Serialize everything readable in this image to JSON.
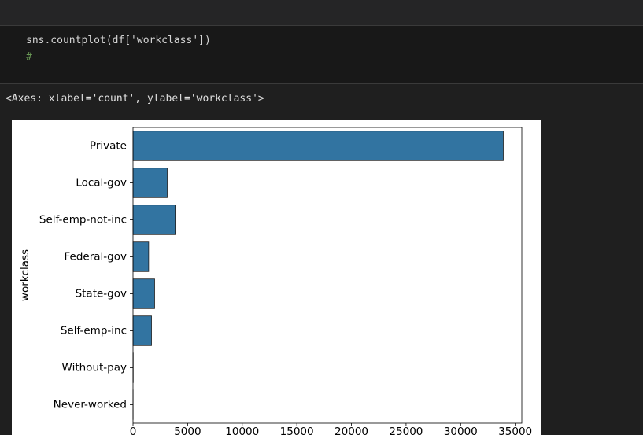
{
  "cell": {
    "code_lines": [
      "sns.countplot(df['workclass'])",
      "#"
    ],
    "output": "<Axes: xlabel='count', ylabel='workclass'>"
  },
  "chart_data": {
    "type": "barh",
    "ylabel": "workclass",
    "categories": [
      "Private",
      "Local-gov",
      "Self-emp-not-inc",
      "Federal-gov",
      "State-gov",
      "Self-emp-inc",
      "Without-pay",
      "Never-worked"
    ],
    "values": [
      33906,
      3136,
      3862,
      1432,
      1981,
      1695,
      21,
      10
    ],
    "color": "#3274a1",
    "xlim": [
      0,
      35600
    ],
    "xticks": [
      0,
      5000,
      10000,
      15000,
      20000,
      25000,
      30000,
      35000
    ]
  }
}
